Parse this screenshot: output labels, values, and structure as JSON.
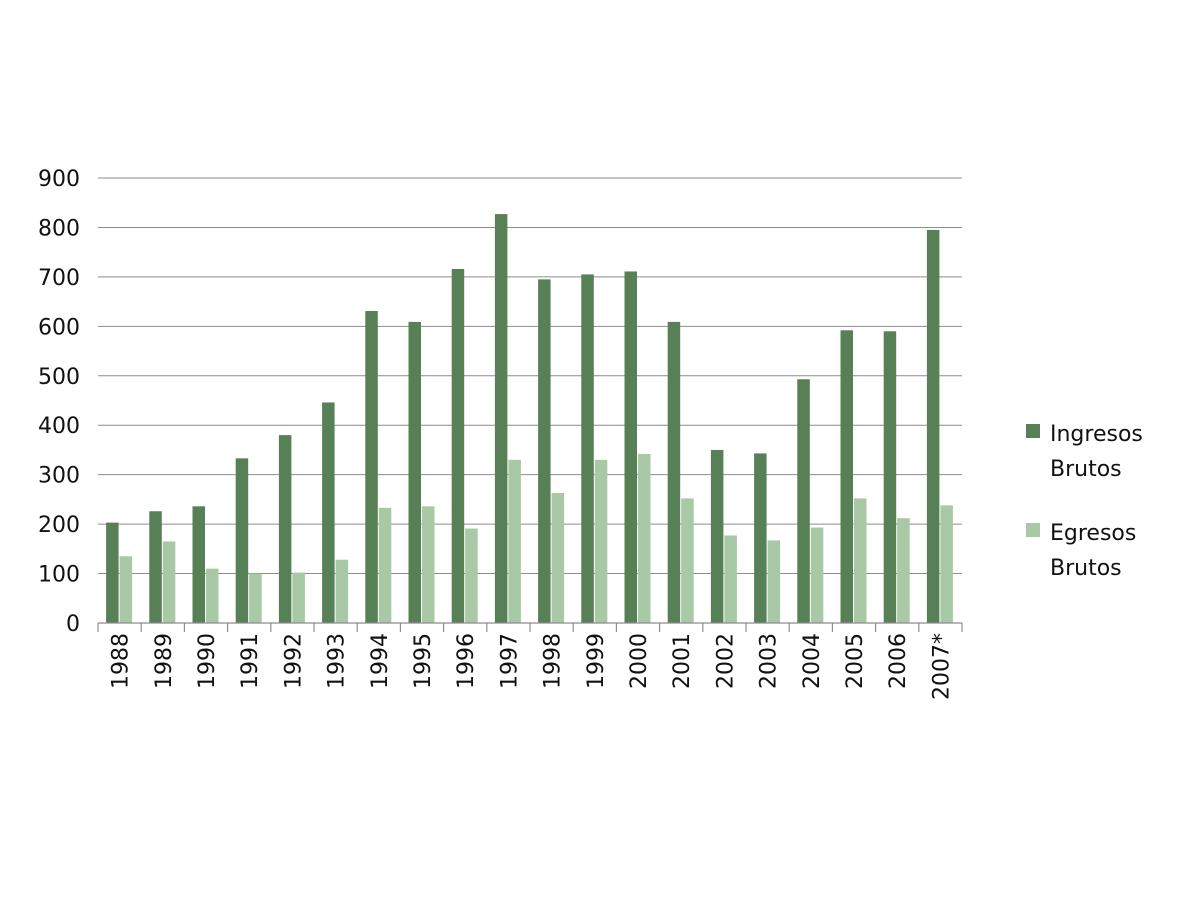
{
  "chart_data": {
    "type": "bar",
    "title": "",
    "xlabel": "",
    "ylabel": "",
    "ylim": [
      0,
      900
    ],
    "yticks": [
      0,
      100,
      200,
      300,
      400,
      500,
      600,
      700,
      800,
      900
    ],
    "grid": true,
    "legend_position": "right",
    "categories": [
      "1988",
      "1989",
      "1990",
      "1991",
      "1992",
      "1993",
      "1994",
      "1995",
      "1996",
      "1997",
      "1998",
      "1999",
      "2000",
      "2001",
      "2002",
      "2003",
      "2004",
      "2005",
      "2006",
      "2007*"
    ],
    "series": [
      {
        "name": "Ingresos Brutos",
        "legend_lines": [
          "Ingresos",
          "Brutos"
        ],
        "color": "#588056",
        "values": [
          203,
          226,
          236,
          333,
          380,
          446,
          631,
          609,
          716,
          827,
          695,
          705,
          711,
          609,
          350,
          343,
          493,
          592,
          590,
          795
        ]
      },
      {
        "name": "Egresos Brutos",
        "legend_lines": [
          "Egresos",
          "Brutos"
        ],
        "color": "#a9c8a6",
        "values": [
          135,
          165,
          110,
          100,
          102,
          128,
          233,
          236,
          191,
          330,
          263,
          330,
          342,
          252,
          177,
          167,
          193,
          252,
          212,
          238
        ]
      }
    ]
  }
}
